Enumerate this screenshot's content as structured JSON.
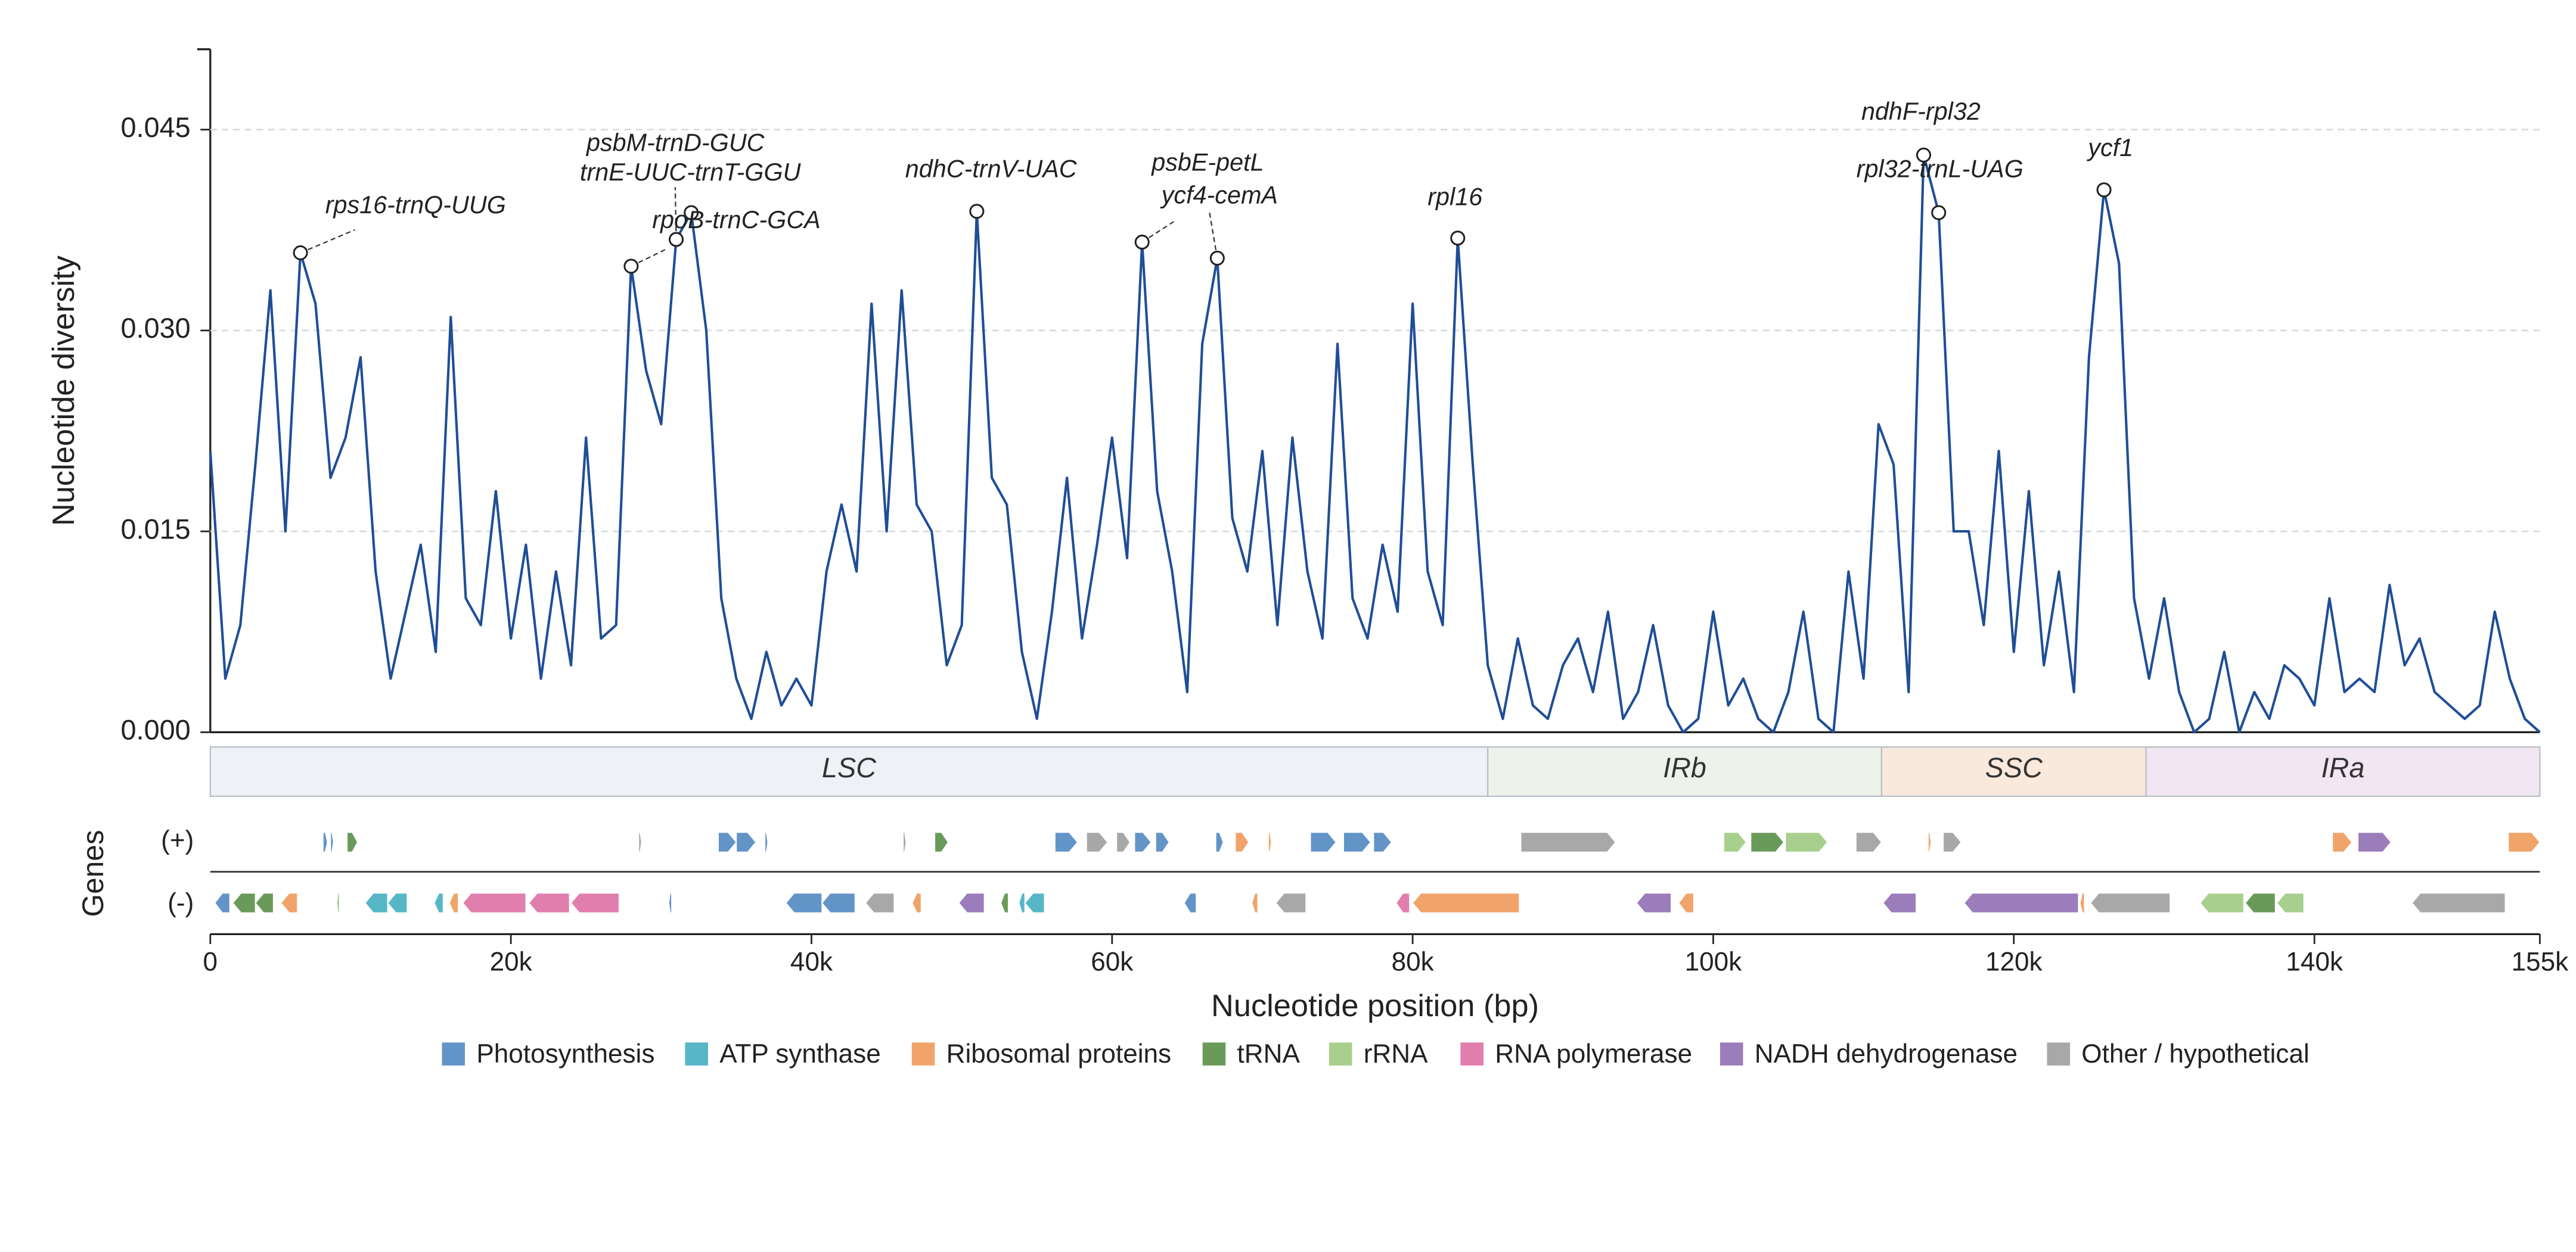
{
  "chart_data": {
    "type": "line",
    "x_label": "Nucleotide position (bp)",
    "y_label": "Nucleotide diversity",
    "xlim": [
      0,
      155000
    ],
    "ylim": [
      0,
      0.051
    ],
    "xticks": [
      0,
      {
        "value": 20000,
        "label": "20k"
      },
      {
        "value": 40000,
        "label": "40k"
      },
      {
        "value": 60000,
        "label": "60k"
      },
      {
        "value": 80000,
        "label": "80k"
      },
      {
        "value": 100000,
        "label": "100k"
      },
      {
        "value": 120000,
        "label": "120k"
      },
      {
        "value": 140000,
        "label": "140k"
      },
      {
        "value": 155000,
        "label": "155k"
      }
    ],
    "yticks": [
      {
        "value": 0,
        "label": "0.000"
      },
      {
        "value": 0.015,
        "label": "0.015"
      },
      {
        "value": 0.03,
        "label": "0.030"
      },
      {
        "value": 0.045,
        "label": "0.045"
      }
    ],
    "grid": true,
    "x": [
      0,
      1000,
      2000,
      3000,
      4000,
      5000,
      6000,
      7000,
      8000,
      9000,
      10000,
      11000,
      12000,
      13000,
      14000,
      15000,
      16000,
      17000,
      18000,
      19000,
      20000,
      21000,
      22000,
      23000,
      24000,
      25000,
      26000,
      27000,
      28000,
      29000,
      30000,
      31000,
      32000,
      33000,
      34000,
      35000,
      36000,
      37000,
      38000,
      39000,
      40000,
      41000,
      42000,
      43000,
      44000,
      45000,
      46000,
      47000,
      48000,
      49000,
      50000,
      51000,
      52000,
      53000,
      54000,
      55000,
      56000,
      57000,
      58000,
      59000,
      60000,
      61000,
      62000,
      63000,
      64000,
      65000,
      66000,
      67000,
      68000,
      69000,
      70000,
      71000,
      72000,
      73000,
      74000,
      75000,
      76000,
      77000,
      78000,
      79000,
      80000,
      81000,
      82000,
      83000,
      84000,
      85000,
      86000,
      87000,
      88000,
      89000,
      90000,
      91000,
      92000,
      93000,
      94000,
      95000,
      96000,
      97000,
      98000,
      99000,
      100000,
      101000,
      102000,
      103000,
      104000,
      105000,
      106000,
      107000,
      108000,
      109000,
      110000,
      111000,
      112000,
      113000,
      114000,
      115000,
      116000,
      117000,
      118000,
      119000,
      120000,
      121000,
      122000,
      123000,
      124000,
      125000,
      126000,
      127000,
      128000,
      129000,
      130000,
      131000,
      132000,
      133000,
      134000,
      135000,
      136000,
      137000,
      138000,
      139000,
      140000,
      141000,
      142000,
      143000,
      144000,
      145000,
      146000,
      147000,
      148000,
      149000,
      150000,
      151000,
      152000,
      153000,
      154000,
      155000
    ],
    "series": [
      {
        "name": "Nucleotide diversity",
        "color": "#1f4e96",
        "values": [
          0.021,
          0.004,
          0.008,
          0.02,
          0.033,
          0.015,
          0.0358,
          0.032,
          0.019,
          0.022,
          0.028,
          0.012,
          0.004,
          0.009,
          0.014,
          0.006,
          0.031,
          0.01,
          0.008,
          0.018,
          0.007,
          0.014,
          0.004,
          0.012,
          0.005,
          0.022,
          0.007,
          0.008,
          0.0348,
          0.027,
          0.023,
          0.0368,
          0.0388,
          0.03,
          0.01,
          0.004,
          0.001,
          0.006,
          0.002,
          0.004,
          0.002,
          0.012,
          0.017,
          0.012,
          0.032,
          0.015,
          0.033,
          0.017,
          0.015,
          0.005,
          0.008,
          0.0389,
          0.019,
          0.017,
          0.006,
          0.001,
          0.009,
          0.019,
          0.007,
          0.014,
          0.022,
          0.013,
          0.0366,
          0.018,
          0.012,
          0.003,
          0.029,
          0.0354,
          0.016,
          0.012,
          0.021,
          0.008,
          0.022,
          0.012,
          0.007,
          0.029,
          0.01,
          0.007,
          0.014,
          0.009,
          0.032,
          0.012,
          0.008,
          0.0369,
          0.02,
          0.005,
          0.001,
          0.007,
          0.002,
          0.001,
          0.005,
          0.007,
          0.003,
          0.009,
          0.001,
          0.003,
          0.008,
          0.002,
          0.0,
          0.001,
          0.009,
          0.002,
          0.004,
          0.001,
          0.0,
          0.003,
          0.009,
          0.001,
          0.0,
          0.012,
          0.004,
          0.023,
          0.02,
          0.003,
          0.0431,
          0.0388,
          0.015,
          0.015,
          0.008,
          0.021,
          0.006,
          0.018,
          0.005,
          0.012,
          0.003,
          0.028,
          0.0405,
          0.035,
          0.01,
          0.004,
          0.01,
          0.003,
          0.0,
          0.001,
          0.006,
          0.0,
          0.003,
          0.001,
          0.005,
          0.004,
          0.002,
          0.01,
          0.003,
          0.004,
          0.003,
          0.011,
          0.005,
          0.007,
          0.003,
          0.002,
          0.001,
          0.002,
          0.009,
          0.004,
          0.001,
          0.0
        ]
      }
    ],
    "annotations": [
      {
        "text": "rps16-trnQ-UUG",
        "x": 6000,
        "y": 0.0358
      },
      {
        "text": "psbM-trnD-GUC",
        "x": 28000,
        "y": 0.0348
      },
      {
        "text": "trnE-UUC-trnT-GGU",
        "x": 31000,
        "y": 0.0368
      },
      {
        "text": "rpoB-trnC-GCA",
        "x": 32000,
        "y": 0.0388
      },
      {
        "text": "ndhC-trnV-UAC",
        "x": 51000,
        "y": 0.0389
      },
      {
        "text": "psbE-petL",
        "x": 62000,
        "y": 0.0366
      },
      {
        "text": "ycf4-cemA",
        "x": 67000,
        "y": 0.0354
      },
      {
        "text": "rpl16",
        "x": 83000,
        "y": 0.0369
      },
      {
        "text": "ndhF-rpl32",
        "x": 114000,
        "y": 0.0431
      },
      {
        "text": "rpl32-trnL-UAG",
        "x": 115000,
        "y": 0.0388
      },
      {
        "text": "ycf1",
        "x": 126000,
        "y": 0.0405
      }
    ],
    "regions": [
      {
        "name": "LSC",
        "start": 0,
        "end": 85000,
        "color": "#eef2f6"
      },
      {
        "name": "IRb",
        "start": 85000,
        "end": 111200,
        "color": "#edf3ea"
      },
      {
        "name": "SSC",
        "start": 111200,
        "end": 128800,
        "color": "#f9e8dc"
      },
      {
        "name": "IRa",
        "start": 128800,
        "end": 155000,
        "color": "#f1e6f1"
      }
    ],
    "genes_label": "Genes",
    "strand_labels": [
      "(+)",
      "(-)"
    ],
    "categories": [
      {
        "name": "Photosynthesis",
        "color": "#6394c8"
      },
      {
        "name": "ATP synthase",
        "color": "#56b6c6"
      },
      {
        "name": "Ribosomal proteins",
        "color": "#f0a46a"
      },
      {
        "name": "tRNA",
        "color": "#6a9a5a"
      },
      {
        "name": "rRNA",
        "color": "#a9cf8e"
      },
      {
        "name": "RNA polymerase",
        "color": "#e07fae"
      },
      {
        "name": "NADH dehydrogenase",
        "color": "#9a7dba"
      },
      {
        "name": "Other / hypothetical",
        "color": "#a8a8a8"
      }
    ],
    "genes": [
      {
        "start": 7500,
        "end": 7800,
        "strand": 0,
        "category": 0
      },
      {
        "start": 8000,
        "end": 8200,
        "strand": 0,
        "category": 0
      },
      {
        "start": 9100,
        "end": 9800,
        "strand": 0,
        "category": 3
      },
      {
        "start": 28500,
        "end": 28700,
        "strand": 0,
        "category": 7
      },
      {
        "start": 33800,
        "end": 35000,
        "strand": 0,
        "category": 0
      },
      {
        "start": 35000,
        "end": 36300,
        "strand": 0,
        "category": 0
      },
      {
        "start": 36900,
        "end": 37100,
        "strand": 0,
        "category": 0
      },
      {
        "start": 46100,
        "end": 46300,
        "strand": 0,
        "category": 7
      },
      {
        "start": 48200,
        "end": 49100,
        "strand": 0,
        "category": 3
      },
      {
        "start": 56200,
        "end": 57700,
        "strand": 0,
        "category": 0
      },
      {
        "start": 58300,
        "end": 59700,
        "strand": 0,
        "category": 7
      },
      {
        "start": 60300,
        "end": 61200,
        "strand": 0,
        "category": 7
      },
      {
        "start": 61500,
        "end": 62600,
        "strand": 0,
        "category": 0
      },
      {
        "start": 62900,
        "end": 63800,
        "strand": 0,
        "category": 0
      },
      {
        "start": 66900,
        "end": 67400,
        "strand": 0,
        "category": 0
      },
      {
        "start": 68200,
        "end": 69100,
        "strand": 0,
        "category": 2
      },
      {
        "start": 70400,
        "end": 70600,
        "strand": 0,
        "category": 2
      },
      {
        "start": 73200,
        "end": 74900,
        "strand": 0,
        "category": 0
      },
      {
        "start": 75400,
        "end": 77200,
        "strand": 0,
        "category": 0
      },
      {
        "start": 77400,
        "end": 78600,
        "strand": 0,
        "category": 0
      },
      {
        "start": 87200,
        "end": 93500,
        "strand": 0,
        "category": 7
      },
      {
        "start": 100700,
        "end": 102200,
        "strand": 0,
        "category": 4
      },
      {
        "start": 102500,
        "end": 104700,
        "strand": 0,
        "category": 3
      },
      {
        "start": 104800,
        "end": 107600,
        "strand": 0,
        "category": 4
      },
      {
        "start": 109500,
        "end": 111200,
        "strand": 0,
        "category": 7
      },
      {
        "start": 114300,
        "end": 114500,
        "strand": 0,
        "category": 2
      },
      {
        "start": 115300,
        "end": 116500,
        "strand": 0,
        "category": 7
      },
      {
        "start": 141200,
        "end": 142500,
        "strand": 0,
        "category": 2
      },
      {
        "start": 142900,
        "end": 145100,
        "strand": 0,
        "category": 6
      },
      {
        "start": 152900,
        "end": 155000,
        "strand": 0,
        "category": 2
      },
      {
        "start": 300,
        "end": 1300,
        "strand": 1,
        "category": 0
      },
      {
        "start": 1500,
        "end": 3000,
        "strand": 1,
        "category": 3
      },
      {
        "start": 3000,
        "end": 4200,
        "strand": 1,
        "category": 3
      },
      {
        "start": 4700,
        "end": 5800,
        "strand": 1,
        "category": 2
      },
      {
        "start": 8400,
        "end": 8600,
        "strand": 1,
        "category": 4
      },
      {
        "start": 10300,
        "end": 11800,
        "strand": 1,
        "category": 1
      },
      {
        "start": 11800,
        "end": 13100,
        "strand": 1,
        "category": 1
      },
      {
        "start": 14900,
        "end": 15500,
        "strand": 1,
        "category": 1
      },
      {
        "start": 15900,
        "end": 16500,
        "strand": 1,
        "category": 2
      },
      {
        "start": 16800,
        "end": 21000,
        "strand": 1,
        "category": 5
      },
      {
        "start": 21200,
        "end": 23900,
        "strand": 1,
        "category": 5
      },
      {
        "start": 24000,
        "end": 27200,
        "strand": 1,
        "category": 5
      },
      {
        "start": 30500,
        "end": 30700,
        "strand": 1,
        "category": 0
      },
      {
        "start": 38300,
        "end": 40700,
        "strand": 1,
        "category": 0
      },
      {
        "start": 40700,
        "end": 42900,
        "strand": 1,
        "category": 0
      },
      {
        "start": 43600,
        "end": 45500,
        "strand": 1,
        "category": 7
      },
      {
        "start": 46700,
        "end": 47300,
        "strand": 1,
        "category": 2
      },
      {
        "start": 49800,
        "end": 51500,
        "strand": 1,
        "category": 6
      },
      {
        "start": 52600,
        "end": 53100,
        "strand": 1,
        "category": 3
      },
      {
        "start": 53800,
        "end": 54200,
        "strand": 1,
        "category": 1
      },
      {
        "start": 54200,
        "end": 55500,
        "strand": 1,
        "category": 1
      },
      {
        "start": 64800,
        "end": 65600,
        "strand": 1,
        "category": 0
      },
      {
        "start": 69300,
        "end": 69700,
        "strand": 1,
        "category": 2
      },
      {
        "start": 70900,
        "end": 72900,
        "strand": 1,
        "category": 7
      },
      {
        "start": 78900,
        "end": 79800,
        "strand": 1,
        "category": 5
      },
      {
        "start": 80000,
        "end": 87100,
        "strand": 1,
        "category": 2
      },
      {
        "start": 94900,
        "end": 97200,
        "strand": 1,
        "category": 6
      },
      {
        "start": 97700,
        "end": 98700,
        "strand": 1,
        "category": 2
      },
      {
        "start": 111300,
        "end": 113500,
        "strand": 1,
        "category": 6
      },
      {
        "start": 116700,
        "end": 124300,
        "strand": 1,
        "category": 6
      },
      {
        "start": 124400,
        "end": 124700,
        "strand": 1,
        "category": 2
      },
      {
        "start": 125100,
        "end": 130400,
        "strand": 1,
        "category": 7
      },
      {
        "start": 132400,
        "end": 135300,
        "strand": 1,
        "category": 4
      },
      {
        "start": 135400,
        "end": 137400,
        "strand": 1,
        "category": 3
      },
      {
        "start": 137500,
        "end": 139300,
        "strand": 1,
        "category": 4
      },
      {
        "start": 146500,
        "end": 152700,
        "strand": 1,
        "category": 7
      }
    ]
  }
}
